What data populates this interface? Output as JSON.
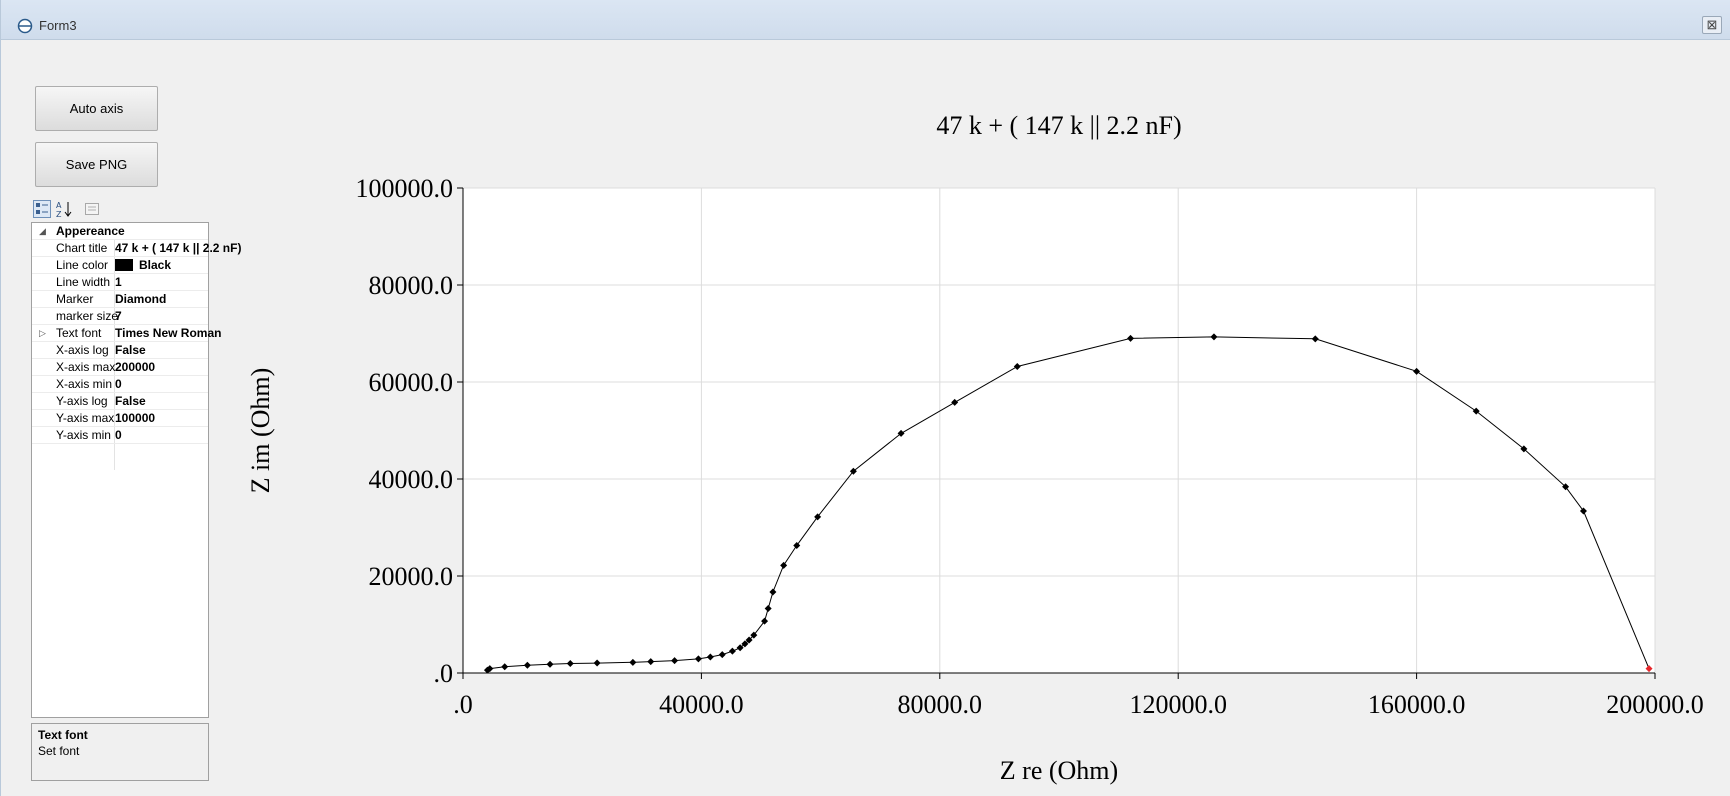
{
  "window": {
    "title": "Form3",
    "close_glyph": "⊠"
  },
  "buttons": {
    "auto_axis": "Auto axis",
    "save_png": "Save PNG"
  },
  "property_grid": {
    "toolbar_icons": [
      "categorized-icon",
      "alphabetical-icon",
      "property-pages-icon"
    ],
    "category": "Appereance",
    "rows": [
      {
        "name": "Chart title",
        "value": "47 k + ( 147 k || 2.2 nF)"
      },
      {
        "name": "Line color",
        "value": "Black",
        "swatch": "#000000"
      },
      {
        "name": "Line width",
        "value": "1"
      },
      {
        "name": "Marker",
        "value": "Diamond"
      },
      {
        "name": "marker size",
        "value": "7"
      },
      {
        "name": "Text font",
        "value": "Times New Roman",
        "expandable": true
      },
      {
        "name": "X-axis log",
        "value": "False"
      },
      {
        "name": "X-axis max",
        "value": "200000"
      },
      {
        "name": "X-axis min",
        "value": "0"
      },
      {
        "name": "Y-axis log",
        "value": "False"
      },
      {
        "name": "Y-axis max",
        "value": "100000"
      },
      {
        "name": "Y-axis min",
        "value": "0"
      }
    ],
    "help": {
      "title": "Text font",
      "description": "Set font"
    }
  },
  "chart_data": {
    "type": "line",
    "title": "47 k + ( 147 k || 2.2 nF)",
    "xlabel": "Z re (Ohm)",
    "ylabel": "Z im (Ohm)",
    "xlim": [
      0,
      200000
    ],
    "ylim": [
      0,
      100000
    ],
    "x_ticks": [
      ".0",
      "40000.0",
      "80000.0",
      "120000.0",
      "160000.0",
      "200000.0"
    ],
    "y_ticks": [
      ".0",
      "20000.0",
      "40000.0",
      "60000.0",
      "80000.0",
      "100000.0"
    ],
    "grid": true,
    "line_color": "#000000",
    "marker": "diamond",
    "last_marker_color": "#e8262b",
    "points": [
      [
        4100,
        600
      ],
      [
        4500,
        900
      ],
      [
        7000,
        1300
      ],
      [
        10800,
        1600
      ],
      [
        14600,
        1800
      ],
      [
        18000,
        1950
      ],
      [
        22500,
        2050
      ],
      [
        28500,
        2200
      ],
      [
        31500,
        2350
      ],
      [
        35500,
        2550
      ],
      [
        39500,
        2900
      ],
      [
        41500,
        3300
      ],
      [
        43500,
        3800
      ],
      [
        45200,
        4500
      ],
      [
        46500,
        5200
      ],
      [
        47300,
        6000
      ],
      [
        48000,
        6800
      ],
      [
        48800,
        7800
      ],
      [
        50600,
        10700
      ],
      [
        51200,
        13300
      ],
      [
        52000,
        16700
      ],
      [
        53800,
        22200
      ],
      [
        56000,
        26300
      ],
      [
        59500,
        32200
      ],
      [
        65500,
        41600
      ],
      [
        73500,
        49400
      ],
      [
        82500,
        55800
      ],
      [
        93000,
        63200
      ],
      [
        112000,
        69000
      ],
      [
        126000,
        69300
      ],
      [
        143000,
        68900
      ],
      [
        160000,
        62200
      ],
      [
        170000,
        54000
      ],
      [
        178000,
        46200
      ],
      [
        185000,
        38400
      ],
      [
        188000,
        33400
      ],
      [
        199000,
        900
      ]
    ]
  }
}
